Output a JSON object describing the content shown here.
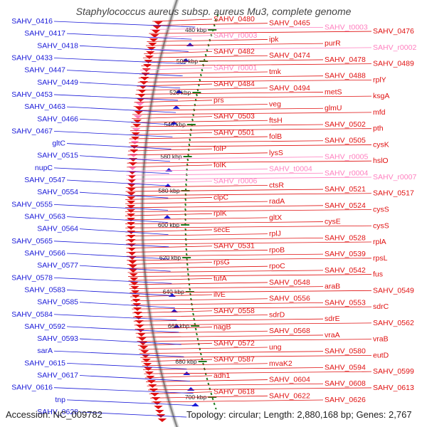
{
  "title": "Staphylococcus aureus subsp. aureus Mu3, complete genome",
  "footer": {
    "accession": "Accession: NC_009782",
    "details": "Topology: circular; Length: 2,880,168 bp; Genes: 2,767"
  },
  "colors": {
    "reverse_gene": "#1a1ad8",
    "forward_gene": "#e01010",
    "rna_gene": "#ff7fbf",
    "backbone": "#888888",
    "tick_marks": "#1f7a1f"
  },
  "ticks": [
    "480 kbp",
    "500 kbp",
    "520 kbp",
    "540 kbp",
    "560 kbp",
    "580 kbp",
    "600 kbp",
    "620 kbp",
    "640 kbp",
    "660 kbp",
    "680 kbp",
    "700 kbp"
  ],
  "left_labels": [
    "SAHV_0416",
    "SAHV_0417",
    "SAHV_0418",
    "SAHV_0433",
    "SAHV_0447",
    "SAHV_0449",
    "SAHV_0453",
    "SAHV_0463",
    "SAHV_0466",
    "SAHV_0467",
    "gltC",
    "SAHV_0515",
    "nupC",
    "SAHV_0547",
    "SAHV_0554",
    "SAHV_0555",
    "SAHV_0563",
    "SAHV_0564",
    "SAHV_0565",
    "SAHV_0566",
    "SAHV_0577",
    "SAHV_0578",
    "SAHV_0583",
    "SAHV_0585",
    "SAHV_0584",
    "SAHV_0592",
    "SAHV_0593",
    "sarA",
    "SAHV_0615",
    "SAHV_0617",
    "SAHV_0616",
    "tnp",
    "SAHV_0628"
  ],
  "right_labels": [
    {
      "text": "SAHV_0480",
      "kind": "cds"
    },
    {
      "text": "SAHV_0465",
      "kind": "cds"
    },
    {
      "text": "SAHV_t0003",
      "kind": "rna"
    },
    {
      "text": "SAHV_0476",
      "kind": "cds"
    },
    {
      "text": "SAHV_r0003",
      "kind": "rna"
    },
    {
      "text": "ipk",
      "kind": "cds"
    },
    {
      "text": "purR",
      "kind": "cds"
    },
    {
      "text": "SAHV_r0002",
      "kind": "rna"
    },
    {
      "text": "SAHV_0482",
      "kind": "cds"
    },
    {
      "text": "SAHV_0474",
      "kind": "cds"
    },
    {
      "text": "SAHV_0478",
      "kind": "cds"
    },
    {
      "text": "SAHV_0489",
      "kind": "cds"
    },
    {
      "text": "SAHV_r0001",
      "kind": "rna"
    },
    {
      "text": "tmk",
      "kind": "cds"
    },
    {
      "text": "SAHV_0488",
      "kind": "cds"
    },
    {
      "text": "rplY",
      "kind": "cds"
    },
    {
      "text": "SAHV_0484",
      "kind": "cds"
    },
    {
      "text": "SAHV_0494",
      "kind": "cds"
    },
    {
      "text": "metS",
      "kind": "cds"
    },
    {
      "text": "ksgA",
      "kind": "cds"
    },
    {
      "text": "prs",
      "kind": "cds"
    },
    {
      "text": "veg",
      "kind": "cds"
    },
    {
      "text": "glmU",
      "kind": "cds"
    },
    {
      "text": "mfd",
      "kind": "cds"
    },
    {
      "text": "SAHV_0503",
      "kind": "cds"
    },
    {
      "text": "ftsH",
      "kind": "cds"
    },
    {
      "text": "SAHV_0502",
      "kind": "cds"
    },
    {
      "text": "pth",
      "kind": "cds"
    },
    {
      "text": "SAHV_0501",
      "kind": "cds"
    },
    {
      "text": "folB",
      "kind": "cds"
    },
    {
      "text": "SAHV_0505",
      "kind": "cds"
    },
    {
      "text": "cysK",
      "kind": "cds"
    },
    {
      "text": "folP",
      "kind": "cds"
    },
    {
      "text": "lysS",
      "kind": "cds"
    },
    {
      "text": "SAHV_r0005",
      "kind": "rna"
    },
    {
      "text": "hslO",
      "kind": "cds"
    },
    {
      "text": "folK",
      "kind": "cds"
    },
    {
      "text": "SAHV_t0004",
      "kind": "rna"
    },
    {
      "text": "SAHV_r0004",
      "kind": "rna"
    },
    {
      "text": "SAHV_r0007",
      "kind": "rna"
    },
    {
      "text": "SAHV_r0006",
      "kind": "rna"
    },
    {
      "text": "ctsR",
      "kind": "cds"
    },
    {
      "text": "SAHV_0521",
      "kind": "cds"
    },
    {
      "text": "SAHV_0517",
      "kind": "cds"
    },
    {
      "text": "clpC",
      "kind": "cds"
    },
    {
      "text": "radA",
      "kind": "cds"
    },
    {
      "text": "SAHV_0524",
      "kind": "cds"
    },
    {
      "text": "cysS",
      "kind": "cds"
    },
    {
      "text": "rplK",
      "kind": "cds"
    },
    {
      "text": "gltX",
      "kind": "cds"
    },
    {
      "text": "cysE",
      "kind": "cds"
    },
    {
      "text": "cysS",
      "kind": "cds"
    },
    {
      "text": "secE",
      "kind": "cds"
    },
    {
      "text": "rplJ",
      "kind": "cds"
    },
    {
      "text": "SAHV_0528",
      "kind": "cds"
    },
    {
      "text": "rplA",
      "kind": "cds"
    },
    {
      "text": "SAHV_0531",
      "kind": "cds"
    },
    {
      "text": "rpoB",
      "kind": "cds"
    },
    {
      "text": "SAHV_0539",
      "kind": "cds"
    },
    {
      "text": "rpsL",
      "kind": "cds"
    },
    {
      "text": "rpsG",
      "kind": "cds"
    },
    {
      "text": "rpoC",
      "kind": "cds"
    },
    {
      "text": "SAHV_0542",
      "kind": "cds"
    },
    {
      "text": "fus",
      "kind": "cds"
    },
    {
      "text": "tufA",
      "kind": "cds"
    },
    {
      "text": "SAHV_0548",
      "kind": "cds"
    },
    {
      "text": "araB",
      "kind": "cds"
    },
    {
      "text": "SAHV_0549",
      "kind": "cds"
    },
    {
      "text": "ilvE",
      "kind": "cds"
    },
    {
      "text": "SAHV_0556",
      "kind": "cds"
    },
    {
      "text": "SAHV_0553",
      "kind": "cds"
    },
    {
      "text": "sdrC",
      "kind": "cds"
    },
    {
      "text": "SAHV_0558",
      "kind": "cds"
    },
    {
      "text": "sdrD",
      "kind": "cds"
    },
    {
      "text": "sdrE",
      "kind": "cds"
    },
    {
      "text": "SAHV_0562",
      "kind": "cds"
    },
    {
      "text": "nagB",
      "kind": "cds"
    },
    {
      "text": "SAHV_0568",
      "kind": "cds"
    },
    {
      "text": "vraA",
      "kind": "cds"
    },
    {
      "text": "vraB",
      "kind": "cds"
    },
    {
      "text": "SAHV_0572",
      "kind": "cds"
    },
    {
      "text": "ung",
      "kind": "cds"
    },
    {
      "text": "SAHV_0580",
      "kind": "cds"
    },
    {
      "text": "eutD",
      "kind": "cds"
    },
    {
      "text": "SAHV_0587",
      "kind": "cds"
    },
    {
      "text": "mvaK2",
      "kind": "cds"
    },
    {
      "text": "SAHV_0594",
      "kind": "cds"
    },
    {
      "text": "SAHV_0599",
      "kind": "cds"
    },
    {
      "text": "adh1",
      "kind": "cds"
    },
    {
      "text": "SAHV_0604",
      "kind": "cds"
    },
    {
      "text": "SAHV_0608",
      "kind": "cds"
    },
    {
      "text": "SAHV_0613",
      "kind": "cds"
    },
    {
      "text": "SAHV_0618",
      "kind": "cds"
    },
    {
      "text": "SAHV_0622",
      "kind": "cds"
    },
    {
      "text": "SAHV_0626",
      "kind": "cds"
    }
  ]
}
